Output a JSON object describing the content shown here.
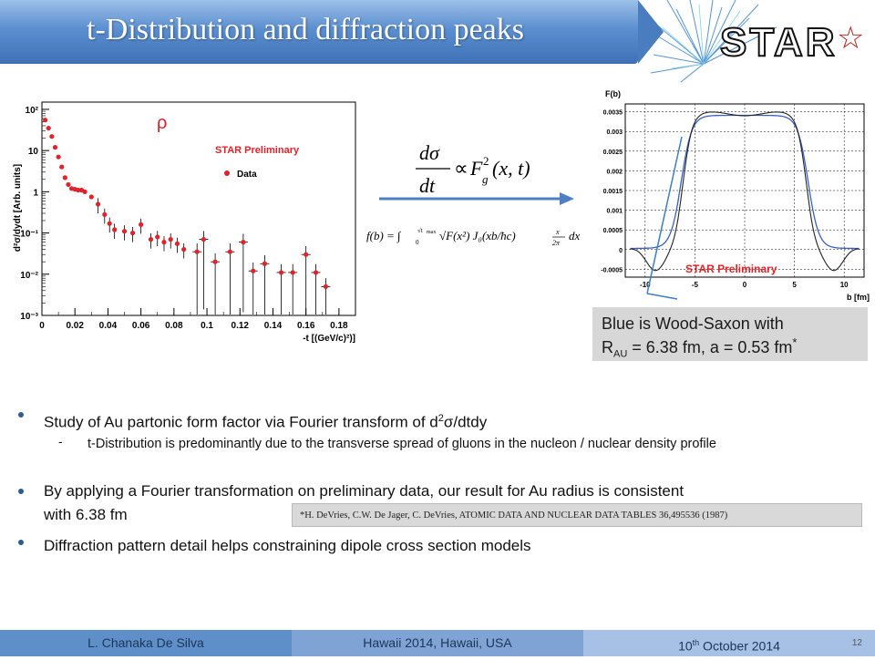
{
  "header": {
    "title": "t-Distribution and diffraction peaks",
    "logo_text": "STAR",
    "logo_star": "☆"
  },
  "left_plot": {
    "ylabel": "d²σ/dydt [Arb. units]",
    "xlabel": "-t [(GeV/c)²)]",
    "annotation_rho": "ρ",
    "legend_title": "STAR Preliminary",
    "legend_entry": "Data",
    "xticks": [
      "0",
      "0.02",
      "0.04",
      "0.06",
      "0.08",
      "0.1",
      "0.12",
      "0.14",
      "0.16",
      "0.18"
    ],
    "yticks": [
      "10²",
      "10",
      "1",
      "10⁻¹",
      "10⁻²",
      "10⁻³"
    ]
  },
  "formulas": {
    "relation": "dσ/dt ∝ F_g²(x,t)",
    "transform": "f(b) = ∫₀^√tmax √F(x²) J₀(xb/ħc) x/2π dx"
  },
  "right_plot": {
    "ylabel": "F(b)",
    "xlabel": "b [fm]",
    "legend_title": "STAR Preliminary",
    "xticks": [
      "-10",
      "-5",
      "0",
      "5",
      "10"
    ],
    "yticks": [
      "0.0035",
      "0.003",
      "0.0025",
      "0.002",
      "0.0015",
      "0.001",
      "0.0005",
      "0",
      "-0.0005"
    ]
  },
  "note": {
    "line1": "Blue is Wood-Saxon with",
    "line2_prefix": "R",
    "line2_sub": "AU",
    "line2_rest": " = 6.38 fm, a = 0.53 fm",
    "star": "*"
  },
  "bullets": {
    "b1_prefix": "Study of Au partonic form factor via Fourier transform of d",
    "b1_sup": "2",
    "b1_suffix": "σ/dtdy",
    "sub1": "t-Distribution is predominantly due to the transverse spread of gluons in the nucleon / nuclear density profile",
    "b2_line1": "By applying a Fourier transformation on preliminary data, our result for Au radius is consistent",
    "b2_line2": "with 6.38 fm",
    "b3": "Diffraction pattern detail helps constraining dipole cross section models"
  },
  "reference": "*H. DeVries,  C.W.  De Jager,  C. DeVries,   ATOMIC DATA AND NUCLEAR DATA TABLES 36,495536 (1987)",
  "footer": {
    "author": "L. Chanaka De Silva",
    "venue": "Hawaii 2014, Hawaii, USA",
    "date_prefix": "10",
    "date_sup": "th",
    "date_suffix": " October 2014",
    "page": "12"
  },
  "chart_data": [
    {
      "type": "scatter",
      "ylabel": "d²σ/dydt [Arb. units]",
      "xlabel": "-t [(GeV/c)²)]",
      "yscale": "log",
      "xlim": [
        0,
        0.19
      ],
      "ylim": [
        0.001,
        150
      ],
      "legend": "top-right",
      "series": [
        {
          "name": "Data",
          "color": "#e0222a",
          "x": [
            0.002,
            0.004,
            0.006,
            0.008,
            0.01,
            0.012,
            0.014,
            0.016,
            0.018,
            0.02,
            0.022,
            0.024,
            0.026,
            0.03,
            0.034,
            0.038,
            0.041,
            0.044,
            0.05,
            0.055,
            0.06,
            0.066,
            0.07,
            0.074,
            0.078,
            0.082,
            0.086,
            0.094,
            0.098,
            0.105,
            0.114,
            0.122,
            0.128,
            0.135,
            0.145,
            0.152,
            0.16,
            0.166,
            0.172
          ],
          "y": [
            55,
            35,
            22,
            12,
            7,
            4,
            2.2,
            1.5,
            1.2,
            1.15,
            1.1,
            1.1,
            1.0,
            0.75,
            0.5,
            0.28,
            0.17,
            0.12,
            0.11,
            0.1,
            0.16,
            0.07,
            0.08,
            0.06,
            0.07,
            0.055,
            0.04,
            0.035,
            0.07,
            0.02,
            0.035,
            0.06,
            0.012,
            0.018,
            0.011,
            0.011,
            0.03,
            0.011,
            0.005
          ]
        }
      ]
    },
    {
      "type": "line",
      "ylabel": "F(b)",
      "xlabel": "b [fm]",
      "xlim": [
        -12,
        12
      ],
      "ylim": [
        -0.0007,
        0.0037
      ],
      "series": [
        {
          "name": "",
          "color": "#222222",
          "profile": "data"
        },
        {
          "name": "",
          "color": "#3c5fc8",
          "profile": "wood-saxon",
          "R": 6.38,
          "a": 0.53
        }
      ]
    }
  ]
}
